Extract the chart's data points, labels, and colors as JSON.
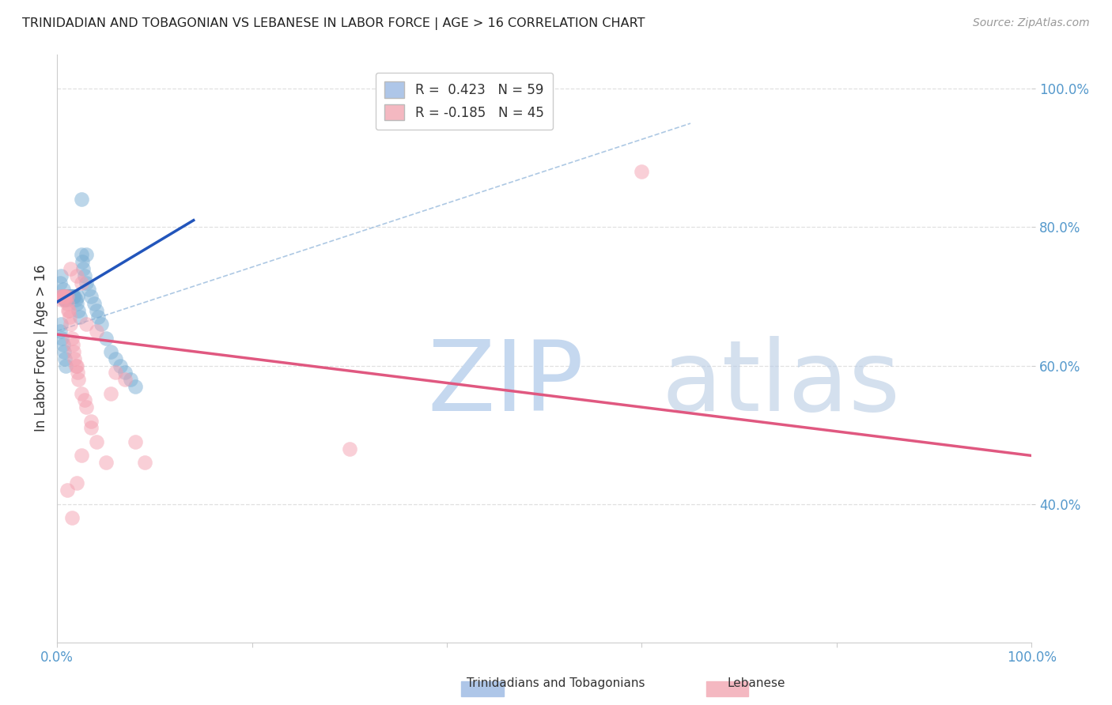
{
  "title": "TRINIDADIAN AND TOBAGONIAN VS LEBANESE IN LABOR FORCE | AGE > 16 CORRELATION CHART",
  "source": "Source: ZipAtlas.com",
  "ylabel": "In Labor Force | Age > 16",
  "blue_scatter_color": "#7bafd4",
  "pink_scatter_color": "#f4a0b0",
  "blue_line_color": "#2255bb",
  "pink_line_color": "#e05880",
  "dashed_line_color": "#99bbdd",
  "background_color": "#ffffff",
  "grid_color": "#dddddd",
  "xlim": [
    0.0,
    1.0
  ],
  "ylim": [
    0.2,
    1.05
  ],
  "blue_scatter_x": [
    0.003,
    0.004,
    0.005,
    0.006,
    0.006,
    0.007,
    0.007,
    0.008,
    0.008,
    0.009,
    0.009,
    0.01,
    0.01,
    0.011,
    0.011,
    0.012,
    0.012,
    0.013,
    0.013,
    0.014,
    0.014,
    0.015,
    0.015,
    0.016,
    0.016,
    0.017,
    0.018,
    0.019,
    0.02,
    0.021,
    0.022,
    0.023,
    0.025,
    0.026,
    0.027,
    0.028,
    0.03,
    0.032,
    0.035,
    0.038,
    0.04,
    0.042,
    0.045,
    0.05,
    0.055,
    0.06,
    0.065,
    0.07,
    0.075,
    0.08,
    0.003,
    0.004,
    0.005,
    0.006,
    0.007,
    0.008,
    0.009,
    0.03,
    0.025
  ],
  "blue_scatter_y": [
    0.72,
    0.73,
    0.7,
    0.71,
    0.7,
    0.7,
    0.695,
    0.695,
    0.7,
    0.7,
    0.7,
    0.7,
    0.695,
    0.7,
    0.7,
    0.7,
    0.7,
    0.7,
    0.7,
    0.7,
    0.7,
    0.7,
    0.7,
    0.7,
    0.7,
    0.7,
    0.7,
    0.695,
    0.69,
    0.7,
    0.68,
    0.67,
    0.76,
    0.75,
    0.74,
    0.73,
    0.72,
    0.71,
    0.7,
    0.69,
    0.68,
    0.67,
    0.66,
    0.64,
    0.62,
    0.61,
    0.6,
    0.59,
    0.58,
    0.57,
    0.65,
    0.66,
    0.64,
    0.63,
    0.62,
    0.61,
    0.6,
    0.76,
    0.84
  ],
  "pink_scatter_x": [
    0.003,
    0.004,
    0.005,
    0.006,
    0.007,
    0.007,
    0.008,
    0.009,
    0.01,
    0.01,
    0.011,
    0.012,
    0.013,
    0.014,
    0.015,
    0.016,
    0.017,
    0.018,
    0.019,
    0.02,
    0.021,
    0.022,
    0.025,
    0.028,
    0.03,
    0.035,
    0.04,
    0.05,
    0.06,
    0.07,
    0.08,
    0.09,
    0.014,
    0.02,
    0.025,
    0.03,
    0.04,
    0.6,
    0.01,
    0.015,
    0.02,
    0.025,
    0.035,
    0.055,
    0.3
  ],
  "pink_scatter_y": [
    0.7,
    0.695,
    0.7,
    0.7,
    0.7,
    0.7,
    0.695,
    0.7,
    0.69,
    0.7,
    0.68,
    0.68,
    0.67,
    0.66,
    0.64,
    0.63,
    0.62,
    0.61,
    0.6,
    0.6,
    0.59,
    0.58,
    0.56,
    0.55,
    0.54,
    0.52,
    0.49,
    0.46,
    0.59,
    0.58,
    0.49,
    0.46,
    0.74,
    0.73,
    0.72,
    0.66,
    0.65,
    0.88,
    0.42,
    0.38,
    0.43,
    0.47,
    0.51,
    0.56,
    0.48
  ],
  "blue_line_x": [
    0.0,
    0.14
  ],
  "blue_line_y": [
    0.692,
    0.81
  ],
  "pink_line_x": [
    0.0,
    1.0
  ],
  "pink_line_y": [
    0.645,
    0.47
  ],
  "dashed_line_x": [
    0.0,
    0.65
  ],
  "dashed_line_y": [
    0.65,
    0.95
  ],
  "legend_label1": "R =  0.423   N = 59",
  "legend_label2": "R = -0.185   N = 45",
  "legend_color1": "#aec6e8",
  "legend_color2": "#f4b8c1",
  "bottom_label1": "Trinidadians and Tobagonians",
  "bottom_label2": "Lebanese",
  "x_tick_positions": [
    0.0,
    0.2,
    0.4,
    0.6,
    0.8,
    1.0
  ],
  "x_tick_labels": [
    "0.0%",
    "",
    "",
    "",
    "",
    "100.0%"
  ],
  "y_tick_positions": [
    0.4,
    0.6,
    0.8,
    1.0
  ],
  "y_tick_labels": [
    "40.0%",
    "60.0%",
    "80.0%",
    "100.0%"
  ]
}
